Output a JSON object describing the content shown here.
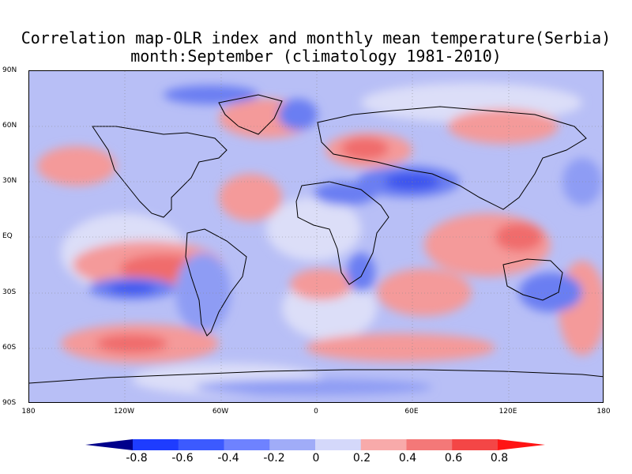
{
  "title": {
    "line1": "Correlation map-OLR index and monthly mean temperature(Serbia)",
    "line2": "month:September (climatology 1981-2010)"
  },
  "map": {
    "lat_labels": [
      "90N",
      "60N",
      "30N",
      "EQ",
      "30S",
      "60S",
      "90S"
    ],
    "lon_labels": [
      "180",
      "120W",
      "60W",
      "0",
      "60E",
      "120E",
      "180"
    ],
    "grid": "dotted",
    "contour_fill_colors": [
      "#0000aa",
      "#1f3ff0",
      "#4b60f0",
      "#7a8cf4",
      "#b4bcf6",
      "#dadcf8",
      "#f8b4b4",
      "#f48a8a",
      "#f05a5a",
      "#ff1c1c"
    ]
  },
  "colorbar": {
    "labels": [
      "-0.8",
      "-0.6",
      "-0.4",
      "-0.2",
      "0",
      "0.2",
      "0.4",
      "0.6",
      "0.8"
    ],
    "colors": [
      "#00008b",
      "#1e3cff",
      "#3c5aff",
      "#6e82ff",
      "#a0acf8",
      "#d4d8fa",
      "#f8aaaa",
      "#f47878",
      "#f44646",
      "#ff1414"
    ]
  }
}
